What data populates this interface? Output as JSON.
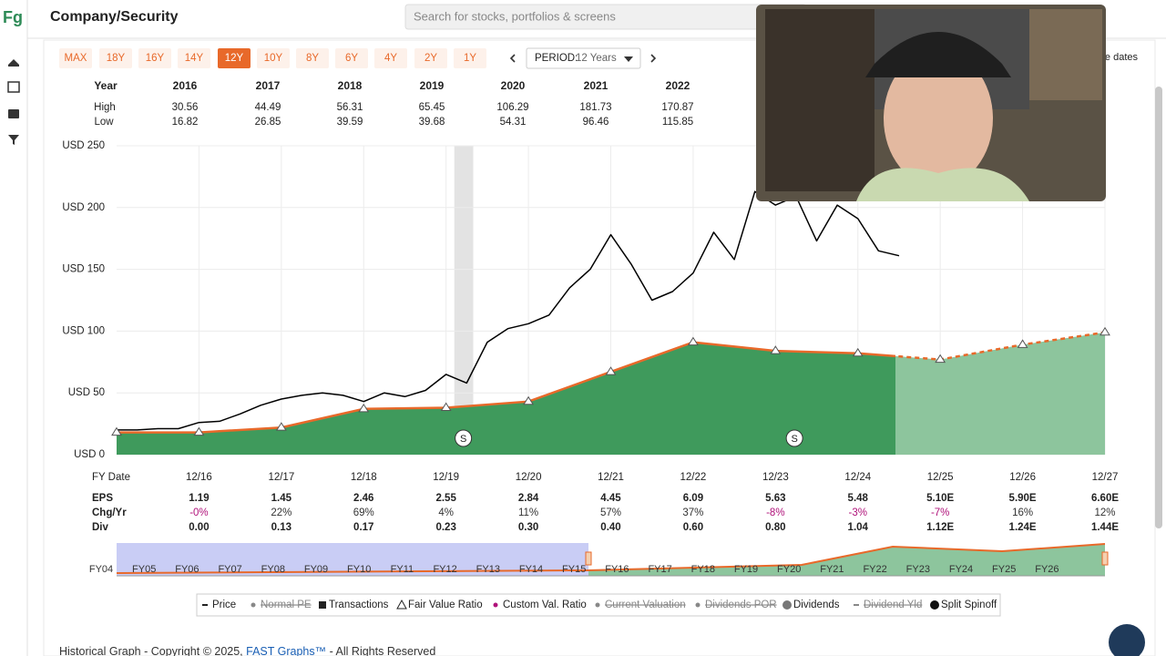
{
  "header": {
    "logo": "Fg",
    "title": "Company/Security",
    "search_placeholder": "Search for stocks, portfolios & screens",
    "partial_link": "e dates"
  },
  "range_buttons": {
    "options": [
      "MAX",
      "18Y",
      "16Y",
      "14Y",
      "12Y",
      "10Y",
      "8Y",
      "6Y",
      "4Y",
      "2Y",
      "1Y"
    ],
    "active_index": 4
  },
  "period": {
    "label": "PERIOD:",
    "value": "12 Years"
  },
  "year_table": {
    "header": "Year",
    "high_label": "High",
    "low_label": "Low",
    "years": [
      "2016",
      "2017",
      "2018",
      "2019",
      "2020",
      "2021",
      "2022"
    ],
    "high": [
      "30.56",
      "44.49",
      "56.31",
      "65.45",
      "106.29",
      "181.73",
      "170.87"
    ],
    "low": [
      "16.82",
      "26.85",
      "39.59",
      "39.68",
      "54.31",
      "96.46",
      "115.85"
    ]
  },
  "chart_data": {
    "type": "line",
    "xlim": [
      0,
      12
    ],
    "xticks": [
      {
        "value": 1,
        "label": "12/16"
      },
      {
        "value": 2,
        "label": "12/17"
      },
      {
        "value": 3,
        "label": "12/18"
      },
      {
        "value": 4,
        "label": "12/19"
      },
      {
        "value": 5,
        "label": "12/20"
      },
      {
        "value": 6,
        "label": "12/21"
      },
      {
        "value": 7,
        "label": "12/22"
      },
      {
        "value": 8,
        "label": "12/23"
      },
      {
        "value": 9,
        "label": "12/24"
      },
      {
        "value": 10,
        "label": "12/25"
      },
      {
        "value": 11,
        "label": "12/26"
      },
      {
        "value": 12,
        "label": "12/27"
      }
    ],
    "x_label": "FY Date",
    "ylim": [
      0,
      250
    ],
    "yticks": [
      {
        "value": 0,
        "label": "USD 0"
      },
      {
        "value": 50,
        "label": "USD 50"
      },
      {
        "value": 100,
        "label": "USD 100"
      },
      {
        "value": 150,
        "label": "USD 150"
      },
      {
        "value": 200,
        "label": "USD 200"
      },
      {
        "value": 250,
        "label": "USD 250"
      }
    ],
    "grid": true,
    "series": [
      {
        "color": "#000000",
        "x": [
          0,
          0.25,
          0.5,
          0.75,
          1,
          1.25,
          1.5,
          1.75,
          2,
          2.25,
          2.5,
          2.75,
          3,
          3.25,
          3.5,
          3.75,
          4,
          4.25,
          4.5,
          4.75,
          5,
          5.25,
          5.5,
          5.75,
          6,
          6.25,
          6.5,
          6.75,
          7,
          7.25,
          7.5,
          7.75,
          8,
          8.25,
          8.5,
          8.75,
          9,
          9.25,
          9.5
        ],
        "values": [
          20,
          20,
          21,
          21,
          26,
          27,
          33,
          40,
          45,
          48,
          50,
          48,
          43,
          50,
          47,
          52,
          65,
          58,
          91,
          102,
          106,
          113,
          135,
          150,
          178,
          154,
          125,
          132,
          147,
          180,
          158,
          213,
          202,
          209,
          173,
          202,
          191,
          165,
          161
        ]
      },
      {
        "color": "#e8692a",
        "fill": "#3f9a5c",
        "fill_estimate": "#8dc59d",
        "x": [
          0,
          1,
          2,
          3,
          4,
          5,
          6,
          7,
          8,
          9,
          10,
          11,
          12
        ],
        "values": [
          18,
          18,
          22,
          37,
          38,
          43,
          67,
          91,
          84,
          82,
          77,
          89,
          99
        ]
      }
    ],
    "shaded_ranges": [
      [
        4.1,
        4.33
      ]
    ],
    "splits": [
      {
        "x": 4.21,
        "label": "S"
      },
      {
        "x": 8.23,
        "label": "S"
      }
    ]
  },
  "fy_table": {
    "rows": [
      {
        "label": "EPS",
        "cells": [
          "1.19",
          "1.45",
          "2.46",
          "2.55",
          "2.84",
          "4.45",
          "6.09",
          "5.63",
          "5.48",
          "5.10E",
          "5.90E",
          "6.60E"
        ]
      },
      {
        "label": "Chg/Yr",
        "cells": [
          "-0%",
          "22%",
          "69%",
          "4%",
          "11%",
          "57%",
          "37%",
          "-8%",
          "-3%",
          "-7%",
          "16%",
          "12%"
        ]
      },
      {
        "label": "Div",
        "cells": [
          "0.00",
          "0.13",
          "0.17",
          "0.23",
          "0.30",
          "0.40",
          "0.60",
          "0.80",
          "1.04",
          "1.12E",
          "1.24E",
          "1.44E"
        ]
      }
    ]
  },
  "navigator": {
    "labels": [
      "FY04",
      "FY05",
      "FY06",
      "FY07",
      "FY08",
      "FY09",
      "FY10",
      "FY11",
      "FY12",
      "FY13",
      "FY14",
      "FY15",
      "FY16",
      "FY17",
      "FY18",
      "FY19",
      "FY20",
      "FY21",
      "FY22",
      "FY23",
      "FY24",
      "FY25",
      "FY26"
    ]
  },
  "legend": [
    {
      "name": "Price",
      "marker": "dash",
      "struck": false
    },
    {
      "name": "Normal PE",
      "marker": "dot",
      "struck": true
    },
    {
      "name": "Transactions",
      "marker": "square",
      "struck": false
    },
    {
      "name": "Fair Value Ratio",
      "marker": "triangle",
      "struck": false
    },
    {
      "name": "Custom Val. Ratio",
      "marker": "dot-purple",
      "struck": false
    },
    {
      "name": "Current Valuation",
      "marker": "dot",
      "struck": true
    },
    {
      "name": "Dividends POR",
      "marker": "dot",
      "struck": true
    },
    {
      "name": "Dividends",
      "marker": "big-dot",
      "struck": false
    },
    {
      "name": "Dividend Yld",
      "marker": "dash",
      "struck": true
    },
    {
      "name": "Split Spinoff",
      "marker": "big-dot-black",
      "struck": false
    }
  ],
  "footer": {
    "text_before": "Historical Graph - Copyright © 2025, ",
    "link": "FAST Graphs™",
    "text_after": " - All Rights Reserved"
  }
}
